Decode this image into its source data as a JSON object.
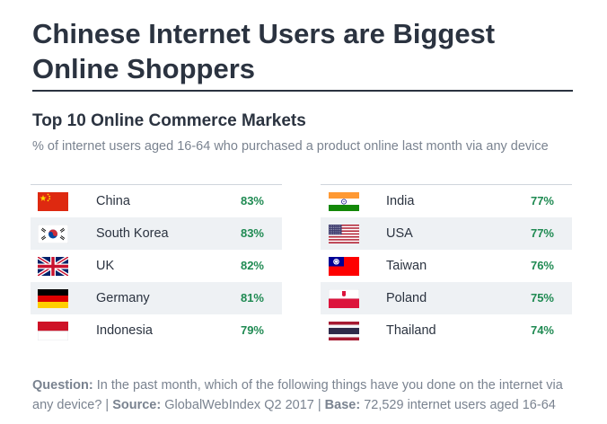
{
  "header": {
    "title_line1": "Chinese Internet Users are Biggest",
    "title_line2": "Online Shoppers"
  },
  "colors": {
    "text": "#2b3340",
    "muted": "#7a8390",
    "value_green": "#1f8a52",
    "row_shade": "#eef1f4"
  },
  "chart_data": {
    "type": "table",
    "title": "Top 10 Online Commerce Markets",
    "subtitle": "% of internet users aged 16-64 who purchased a product online last month via any device",
    "unit": "%",
    "columns": [
      [
        {
          "country": "China",
          "flag": "china-flag-icon",
          "value": 83,
          "label": "83%"
        },
        {
          "country": "South Korea",
          "flag": "south-korea-flag-icon",
          "value": 83,
          "label": "83%"
        },
        {
          "country": "UK",
          "flag": "uk-flag-icon",
          "value": 82,
          "label": "82%"
        },
        {
          "country": "Germany",
          "flag": "germany-flag-icon",
          "value": 81,
          "label": "81%"
        },
        {
          "country": "Indonesia",
          "flag": "indonesia-flag-icon",
          "value": 79,
          "label": "79%"
        }
      ],
      [
        {
          "country": "India",
          "flag": "india-flag-icon",
          "value": 77,
          "label": "77%"
        },
        {
          "country": "USA",
          "flag": "usa-flag-icon",
          "value": 77,
          "label": "77%"
        },
        {
          "country": "Taiwan",
          "flag": "taiwan-flag-icon",
          "value": 76,
          "label": "76%"
        },
        {
          "country": "Poland",
          "flag": "poland-flag-icon",
          "value": 75,
          "label": "75%"
        },
        {
          "country": "Thailand",
          "flag": "thailand-flag-icon",
          "value": 74,
          "label": "74%"
        }
      ]
    ]
  },
  "footnote": {
    "question_label": "Question:",
    "question_text": " In the past month, which of the following things have you done on the internet via any device? | ",
    "source_label": "Source:",
    "source_text": " GlobalWebIndex Q2 2017 | ",
    "base_label": "Base:",
    "base_text": " 72,529 internet users aged 16-64"
  }
}
